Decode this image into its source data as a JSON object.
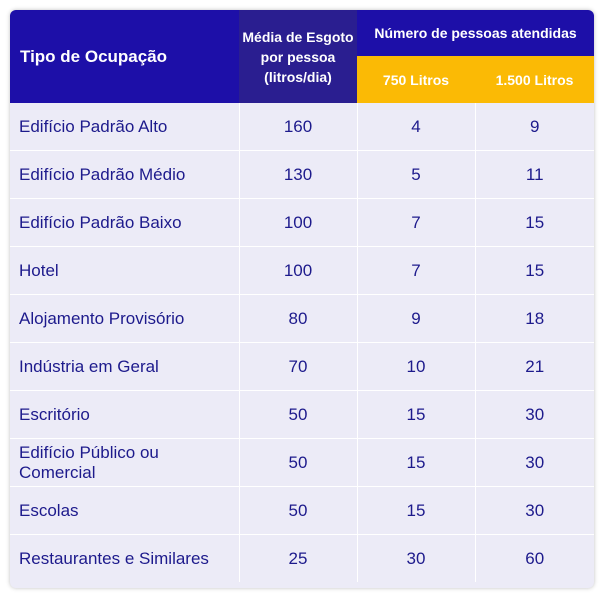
{
  "header": {
    "occupation": "Tipo de Ocupação",
    "average": [
      "Média de Esgoto",
      "por pessoa",
      "(litros/dia)"
    ],
    "people": "Número de pessoas atendidas",
    "col_750": "750 Litros",
    "col_1500": "1.500 Litros"
  },
  "rows": [
    {
      "name": "Edifício Padrão Alto",
      "avg": "160",
      "l750": "4",
      "l1500": "9"
    },
    {
      "name": "Edifício Padrão Médio",
      "avg": "130",
      "l750": "5",
      "l1500": "11"
    },
    {
      "name": "Edifício Padrão Baixo",
      "avg": "100",
      "l750": "7",
      "l1500": "15"
    },
    {
      "name": "Hotel",
      "avg": "100",
      "l750": "7",
      "l1500": "15"
    },
    {
      "name": "Alojamento Provisório",
      "avg": "80",
      "l750": "9",
      "l1500": "18"
    },
    {
      "name": "Indústria em Geral",
      "avg": "70",
      "l750": "10",
      "l1500": "21"
    },
    {
      "name": "Escritório",
      "avg": "50",
      "l750": "15",
      "l1500": "30"
    },
    {
      "name": "Edifício Público ou Comercial",
      "avg": "50",
      "l750": "15",
      "l1500": "30"
    },
    {
      "name": "Escolas",
      "avg": "50",
      "l750": "15",
      "l1500": "30"
    },
    {
      "name": "Restaurantes e Similares",
      "avg": "25",
      "l750": "30",
      "l1500": "60"
    }
  ],
  "colors": {
    "header_blue": "#1d0fa8",
    "header_dark_blue": "#2a1e90",
    "header_yellow": "#fbba05",
    "body_bg": "#ecebf7",
    "body_text": "#1d1a8c"
  }
}
